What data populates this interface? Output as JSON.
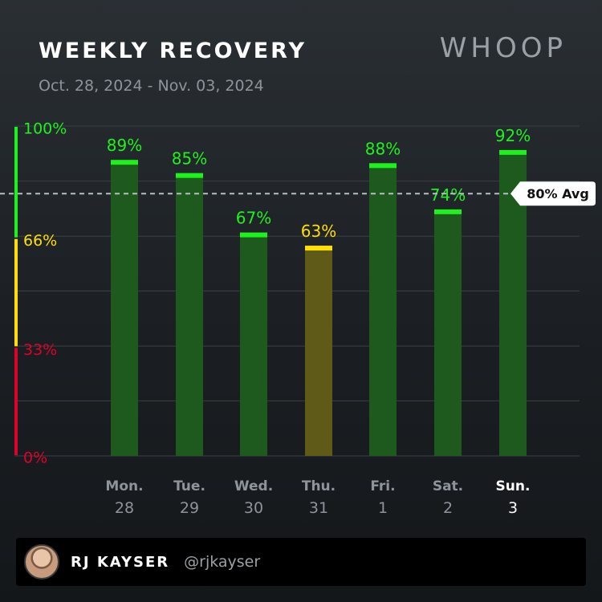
{
  "header": {
    "title": "WEEKLY RECOVERY",
    "subtitle": "Oct. 28, 2024 - Nov. 03, 2024",
    "logo": "WHOOP"
  },
  "footer": {
    "name": "RJ KAYSER",
    "handle": "@rjkayser"
  },
  "colors": {
    "green": "#1cf21c",
    "yellow": "#ffde00",
    "red": "#e0002a",
    "green_bar": "#1e5a1e",
    "yellow_bar": "#5f5a18"
  },
  "chart_data": {
    "type": "bar",
    "days": [
      "Mon.",
      "Tue.",
      "Wed.",
      "Thu.",
      "Fri.",
      "Sat.",
      "Sun."
    ],
    "dates": [
      "28",
      "29",
      "30",
      "31",
      "1",
      "2",
      "3"
    ],
    "values": [
      89,
      85,
      67,
      63,
      88,
      74,
      92
    ],
    "value_labels": [
      "89%",
      "85%",
      "67%",
      "63%",
      "88%",
      "74%",
      "92%"
    ],
    "zones": [
      "green",
      "green",
      "green",
      "yellow",
      "green",
      "green",
      "green"
    ],
    "highlight_index": 6,
    "y_ticks": [
      {
        "value": 100,
        "label": "100%",
        "zone": "green"
      },
      {
        "value": 66,
        "label": "66%",
        "zone": "yellow"
      },
      {
        "value": 33,
        "label": "33%",
        "zone": "red"
      },
      {
        "value": 0,
        "label": "0%",
        "zone": "red"
      }
    ],
    "ylim": [
      0,
      100
    ],
    "average": 80,
    "average_label": "80% Avg",
    "grid": true
  }
}
